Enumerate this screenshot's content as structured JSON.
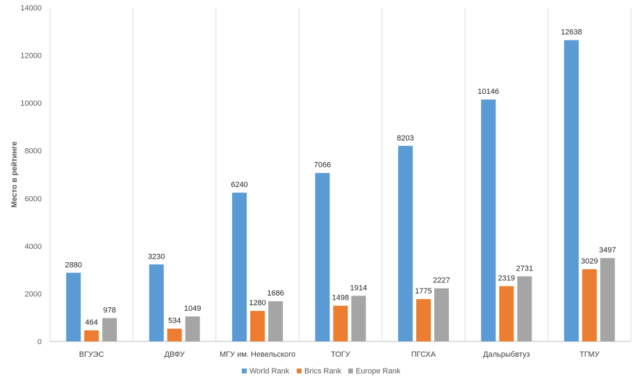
{
  "chart_data": {
    "type": "bar",
    "title": "",
    "xlabel": "",
    "ylabel": "Место в рейтинге",
    "ylim": [
      0,
      14000
    ],
    "yticks": [
      0,
      2000,
      4000,
      6000,
      8000,
      10000,
      12000,
      14000
    ],
    "grid": "vertical separators between categories",
    "legend_position": "bottom",
    "categories": [
      "ВГУЭС",
      "ДВФУ",
      "МГУ им. Невельского",
      "ТОГУ",
      "ПГСХА",
      "Дальрыбвтуз",
      "ТГМУ"
    ],
    "series": [
      {
        "name": "World Rank",
        "color": "#5b9bd5",
        "values": [
          2880,
          3230,
          6240,
          7066,
          8203,
          10146,
          12638
        ]
      },
      {
        "name": "Brics Rank",
        "color": "#ed7d31",
        "values": [
          464,
          534,
          1280,
          1498,
          1775,
          2319,
          3029
        ]
      },
      {
        "name": "Europe Rank",
        "color": "#a5a5a5",
        "values": [
          978,
          1049,
          1686,
          1914,
          2227,
          2731,
          3497
        ]
      }
    ]
  }
}
